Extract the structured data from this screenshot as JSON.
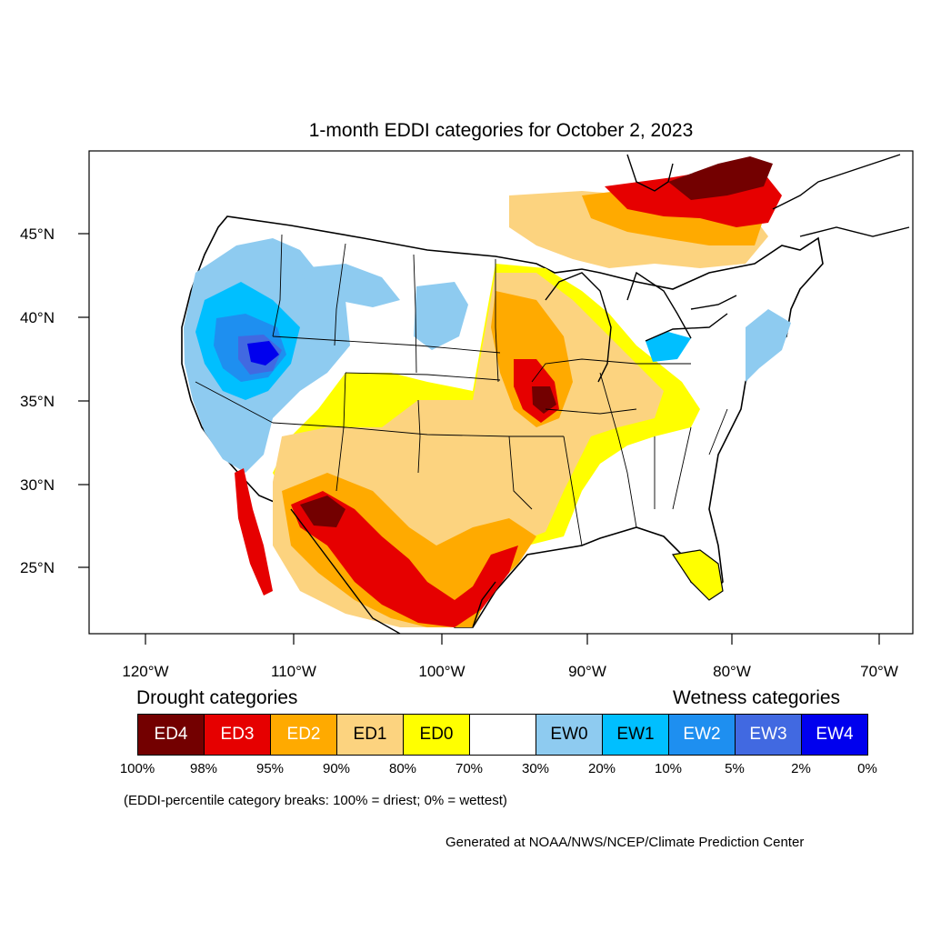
{
  "map": {
    "title": "1-month EDDI categories for October 2, 2023",
    "lat_labels": [
      "45°N",
      "40°N",
      "35°N",
      "30°N",
      "25°N"
    ],
    "lon_labels": [
      "120°W",
      "110°W",
      "100°W",
      "90°W",
      "80°W",
      "70°W"
    ]
  },
  "legend": {
    "drought_title": "Drought categories",
    "wetness_title": "Wetness categories",
    "categories": [
      {
        "label": "ED4",
        "color": "#730000",
        "text_color": "#ffffff"
      },
      {
        "label": "ED3",
        "color": "#e60000",
        "text_color": "#ffffff"
      },
      {
        "label": "ED2",
        "color": "#ffaa00",
        "text_color": "#ffffff"
      },
      {
        "label": "ED1",
        "color": "#fcd37f",
        "text_color": "#000000"
      },
      {
        "label": "ED0",
        "color": "#ffff00",
        "text_color": "#000000"
      },
      {
        "label": "",
        "color": "#ffffff",
        "text_color": "#000000"
      },
      {
        "label": "EW0",
        "color": "#8ecbf0",
        "text_color": "#000000"
      },
      {
        "label": "EW1",
        "color": "#00bfff",
        "text_color": "#000000"
      },
      {
        "label": "EW2",
        "color": "#1e8ff0",
        "text_color": "#ffffff"
      },
      {
        "label": "EW3",
        "color": "#4169e1",
        "text_color": "#ffffff"
      },
      {
        "label": "EW4",
        "color": "#0000ee",
        "text_color": "#ffffff"
      }
    ],
    "percentiles": [
      "100%",
      "98%",
      "95%",
      "90%",
      "80%",
      "70%",
      "30%",
      "20%",
      "10%",
      "5%",
      "2%",
      "0%"
    ],
    "note": "(EDDI-percentile category breaks: 100% = driest; 0% = wettest)"
  },
  "credit": "Generated at NOAA/NWS/NCEP/Climate Prediction Center"
}
